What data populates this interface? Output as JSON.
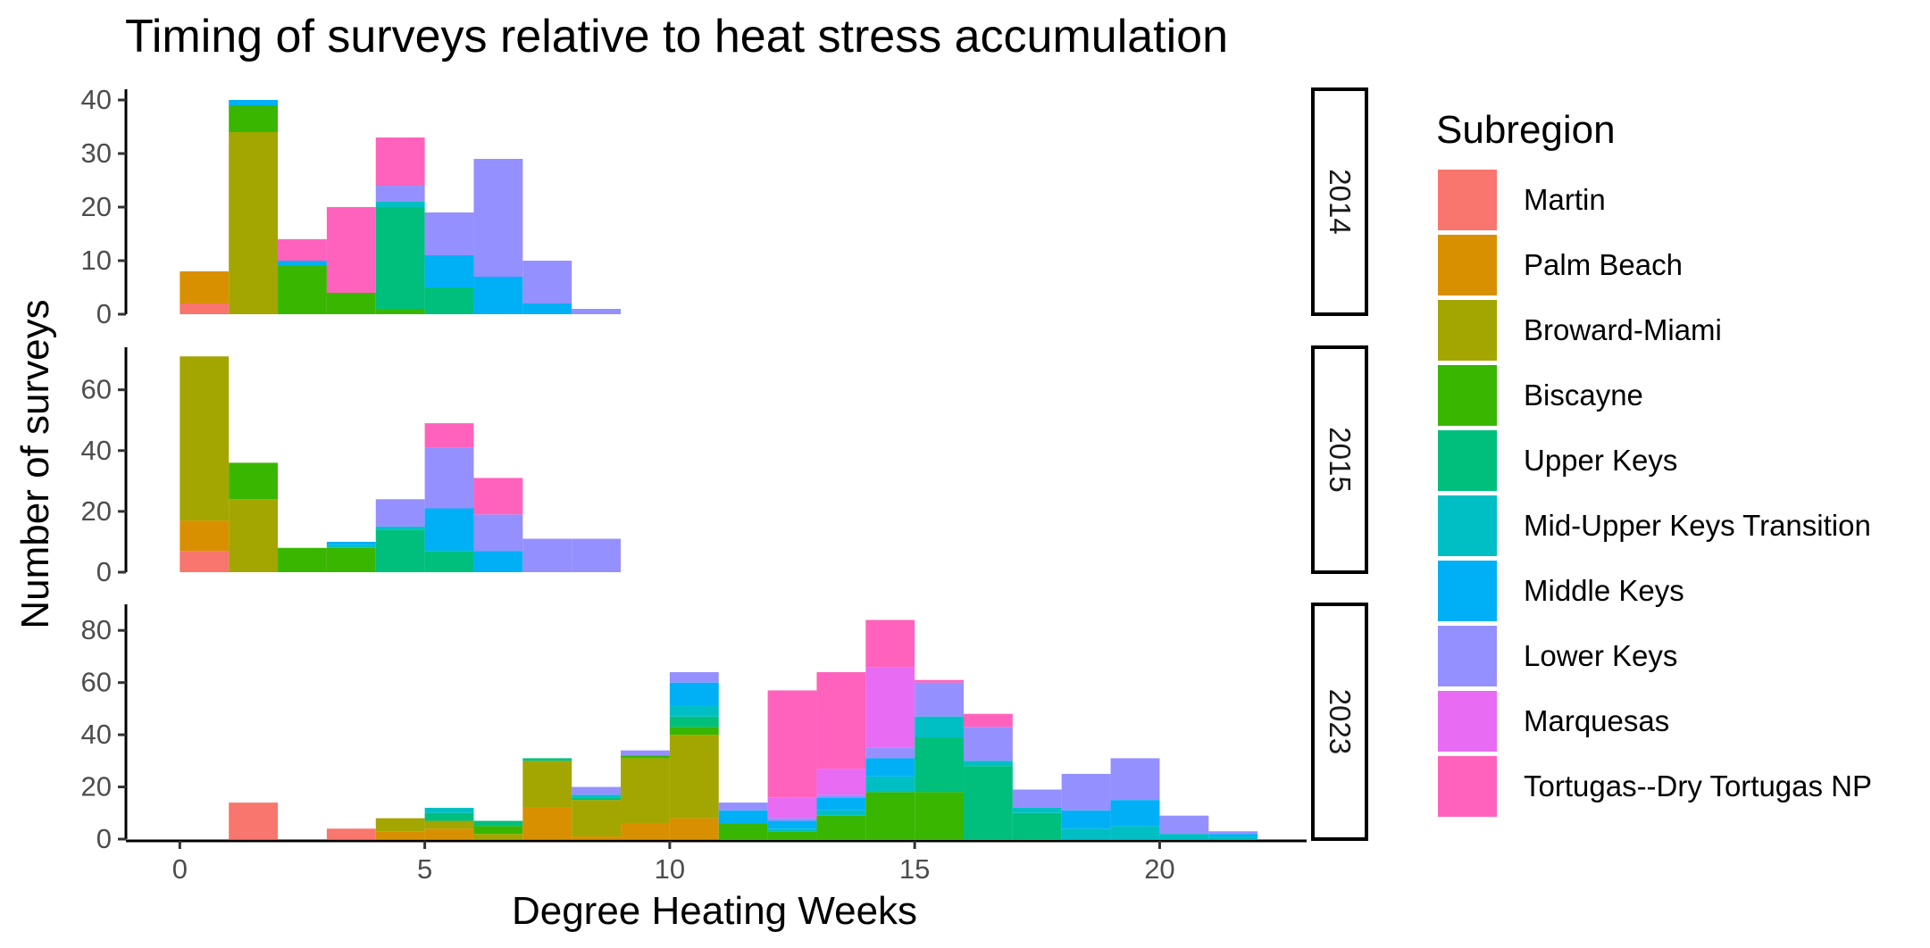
{
  "chart_data": {
    "type": "bar",
    "subtype": "faceted stacked histogram",
    "title": "Timing of surveys relative to heat stress accumulation",
    "xlabel": "Degree Heating Weeks",
    "ylabel": "Number of surveys",
    "xlim": [
      -1.1,
      23
    ],
    "x_ticks": [
      0,
      5,
      10,
      15,
      20
    ],
    "bin_width": 1,
    "bin_starts": [
      0,
      1,
      2,
      3,
      4,
      5,
      6,
      7,
      8,
      9,
      10,
      11,
      12,
      13,
      14,
      15,
      16,
      17,
      18,
      19,
      20,
      21
    ],
    "legend": {
      "title": "Subregion",
      "position": "right",
      "entries": [
        {
          "key": "martin",
          "label": "Martin",
          "color": "#F8766D"
        },
        {
          "key": "palm_beach",
          "label": "Palm Beach",
          "color": "#D89000"
        },
        {
          "key": "broward_miami",
          "label": "Broward-Miami",
          "color": "#A3A500"
        },
        {
          "key": "biscayne",
          "label": "Biscayne",
          "color": "#39B600"
        },
        {
          "key": "upper_keys",
          "label": "Upper Keys",
          "color": "#00BF7D"
        },
        {
          "key": "mid_upper",
          "label": "Mid-Upper Keys Transition",
          "color": "#00BFC4"
        },
        {
          "key": "middle_keys",
          "label": "Middle Keys",
          "color": "#00B0F6"
        },
        {
          "key": "lower_keys",
          "label": "Lower Keys",
          "color": "#9590FF"
        },
        {
          "key": "marquesas",
          "label": "Marquesas",
          "color": "#E76BF3"
        },
        {
          "key": "tortugas",
          "label": "Tortugas--Dry Tortugas NP",
          "color": "#FF62BC"
        }
      ]
    },
    "facets": [
      {
        "label": "2014",
        "ylim": [
          0,
          42
        ],
        "y_ticks": [
          0,
          10,
          20,
          30,
          40
        ],
        "series": [
          {
            "key": "martin",
            "values": [
              2,
              0,
              0,
              0,
              0,
              0,
              0,
              0,
              0,
              0,
              0,
              0,
              0,
              0,
              0,
              0,
              0,
              0,
              0,
              0,
              0,
              0
            ]
          },
          {
            "key": "palm_beach",
            "values": [
              6,
              0,
              0,
              0,
              0,
              0,
              0,
              0,
              0,
              0,
              0,
              0,
              0,
              0,
              0,
              0,
              0,
              0,
              0,
              0,
              0,
              0
            ]
          },
          {
            "key": "broward_miami",
            "values": [
              0,
              34,
              0,
              0,
              0,
              0,
              0,
              0,
              0,
              0,
              0,
              0,
              0,
              0,
              0,
              0,
              0,
              0,
              0,
              0,
              0,
              0
            ]
          },
          {
            "key": "biscayne",
            "values": [
              0,
              5,
              9,
              4,
              1,
              0,
              0,
              0,
              0,
              0,
              0,
              0,
              0,
              0,
              0,
              0,
              0,
              0,
              0,
              0,
              0,
              0
            ]
          },
          {
            "key": "upper_keys",
            "values": [
              0,
              0,
              0,
              0,
              19,
              5,
              0,
              0,
              0,
              0,
              0,
              0,
              0,
              0,
              0,
              0,
              0,
              0,
              0,
              0,
              0,
              0
            ]
          },
          {
            "key": "mid_upper",
            "values": [
              0,
              0,
              0,
              0,
              1,
              0,
              0,
              0,
              0,
              0,
              0,
              0,
              0,
              0,
              0,
              0,
              0,
              0,
              0,
              0,
              0,
              0
            ]
          },
          {
            "key": "middle_keys",
            "values": [
              0,
              1,
              1,
              0,
              0,
              6,
              7,
              2,
              0,
              0,
              0,
              0,
              0,
              0,
              0,
              0,
              0,
              0,
              0,
              0,
              0,
              0
            ]
          },
          {
            "key": "lower_keys",
            "values": [
              0,
              0,
              0,
              0,
              3,
              8,
              22,
              8,
              1,
              0,
              0,
              0,
              0,
              0,
              0,
              0,
              0,
              0,
              0,
              0,
              0,
              0
            ]
          },
          {
            "key": "marquesas",
            "values": [
              0,
              0,
              0,
              0,
              0,
              0,
              0,
              0,
              0,
              0,
              0,
              0,
              0,
              0,
              0,
              0,
              0,
              0,
              0,
              0,
              0,
              0
            ]
          },
          {
            "key": "tortugas",
            "values": [
              0,
              0,
              4,
              16,
              9,
              0,
              0,
              0,
              0,
              0,
              0,
              0,
              0,
              0,
              0,
              0,
              0,
              0,
              0,
              0,
              0,
              0
            ]
          }
        ]
      },
      {
        "label": "2015",
        "ylim": [
          0,
          74
        ],
        "y_ticks": [
          0,
          20,
          40,
          60
        ],
        "series": [
          {
            "key": "martin",
            "values": [
              7,
              0,
              0,
              0,
              0,
              0,
              0,
              0,
              0,
              0,
              0,
              0,
              0,
              0,
              0,
              0,
              0,
              0,
              0,
              0,
              0,
              0
            ]
          },
          {
            "key": "palm_beach",
            "values": [
              10,
              0,
              0,
              0,
              0,
              0,
              0,
              0,
              0,
              0,
              0,
              0,
              0,
              0,
              0,
              0,
              0,
              0,
              0,
              0,
              0,
              0
            ]
          },
          {
            "key": "broward_miami",
            "values": [
              54,
              24,
              0,
              0,
              0,
              0,
              0,
              0,
              0,
              0,
              0,
              0,
              0,
              0,
              0,
              0,
              0,
              0,
              0,
              0,
              0,
              0
            ]
          },
          {
            "key": "biscayne",
            "values": [
              0,
              12,
              8,
              8,
              0,
              0,
              0,
              0,
              0,
              0,
              0,
              0,
              0,
              0,
              0,
              0,
              0,
              0,
              0,
              0,
              0,
              0
            ]
          },
          {
            "key": "upper_keys",
            "values": [
              0,
              0,
              0,
              0,
              14,
              7,
              0,
              0,
              0,
              0,
              0,
              0,
              0,
              0,
              0,
              0,
              0,
              0,
              0,
              0,
              0,
              0
            ]
          },
          {
            "key": "mid_upper",
            "values": [
              0,
              0,
              0,
              1,
              1,
              0,
              0,
              0,
              0,
              0,
              0,
              0,
              0,
              0,
              0,
              0,
              0,
              0,
              0,
              0,
              0,
              0
            ]
          },
          {
            "key": "middle_keys",
            "values": [
              0,
              0,
              0,
              1,
              0,
              14,
              7,
              0,
              0,
              0,
              0,
              0,
              0,
              0,
              0,
              0,
              0,
              0,
              0,
              0,
              0,
              0
            ]
          },
          {
            "key": "lower_keys",
            "values": [
              0,
              0,
              0,
              0,
              9,
              20,
              12,
              11,
              11,
              0,
              0,
              0,
              0,
              0,
              0,
              0,
              0,
              0,
              0,
              0,
              0,
              0
            ]
          },
          {
            "key": "marquesas",
            "values": [
              0,
              0,
              0,
              0,
              0,
              0,
              0,
              0,
              0,
              0,
              0,
              0,
              0,
              0,
              0,
              0,
              0,
              0,
              0,
              0,
              0,
              0
            ]
          },
          {
            "key": "tortugas",
            "values": [
              0,
              0,
              0,
              0,
              0,
              8,
              12,
              0,
              0,
              0,
              0,
              0,
              0,
              0,
              0,
              0,
              0,
              0,
              0,
              0,
              0,
              0
            ]
          }
        ]
      },
      {
        "label": "2023",
        "ylim": [
          0,
          90
        ],
        "y_ticks": [
          0,
          20,
          40,
          60,
          80
        ],
        "series": [
          {
            "key": "martin",
            "values": [
              0,
              14,
              0,
              4,
              0,
              0,
              0,
              0,
              0,
              0,
              0,
              0,
              0,
              0,
              0,
              0,
              0,
              0,
              0,
              0,
              0,
              0
            ]
          },
          {
            "key": "palm_beach",
            "values": [
              0,
              0,
              0,
              0,
              3,
              4,
              0,
              12,
              1,
              6,
              8,
              0,
              0,
              0,
              0,
              0,
              0,
              0,
              0,
              0,
              0,
              0
            ]
          },
          {
            "key": "broward_miami",
            "values": [
              0,
              0,
              0,
              0,
              5,
              3,
              2,
              18,
              14,
              25,
              32,
              0,
              0,
              0,
              0,
              0,
              0,
              0,
              0,
              0,
              0,
              0
            ]
          },
          {
            "key": "biscayne",
            "values": [
              0,
              0,
              0,
              0,
              0,
              0,
              3,
              0,
              0,
              1,
              3,
              6,
              3,
              9,
              18,
              18,
              0,
              0,
              0,
              0,
              0,
              0
            ]
          },
          {
            "key": "upper_keys",
            "values": [
              0,
              0,
              0,
              0,
              0,
              3,
              2,
              1,
              1,
              0,
              4,
              0,
              0,
              0,
              0,
              21,
              28,
              10,
              0,
              0,
              0,
              0
            ]
          },
          {
            "key": "mid_upper",
            "values": [
              0,
              0,
              0,
              0,
              0,
              2,
              0,
              0,
              1,
              0,
              4,
              0,
              1,
              2,
              6,
              8,
              2,
              2,
              4,
              5,
              2,
              1
            ]
          },
          {
            "key": "middle_keys",
            "values": [
              0,
              0,
              0,
              0,
              0,
              0,
              0,
              0,
              0,
              0,
              9,
              5,
              3,
              5,
              7,
              0,
              0,
              0,
              7,
              10,
              0,
              1
            ]
          },
          {
            "key": "lower_keys",
            "values": [
              0,
              0,
              0,
              0,
              0,
              0,
              0,
              0,
              3,
              2,
              4,
              3,
              1,
              1,
              4,
              13,
              13,
              7,
              14,
              16,
              7,
              1
            ]
          },
          {
            "key": "marquesas",
            "values": [
              0,
              0,
              0,
              0,
              0,
              0,
              0,
              0,
              0,
              0,
              0,
              0,
              8,
              10,
              31,
              0,
              0,
              0,
              0,
              0,
              0,
              0
            ]
          },
          {
            "key": "tortugas",
            "values": [
              0,
              0,
              0,
              0,
              0,
              0,
              0,
              0,
              0,
              0,
              0,
              0,
              41,
              37,
              18,
              1,
              5,
              0,
              0,
              0,
              0,
              0
            ]
          }
        ]
      }
    ]
  }
}
